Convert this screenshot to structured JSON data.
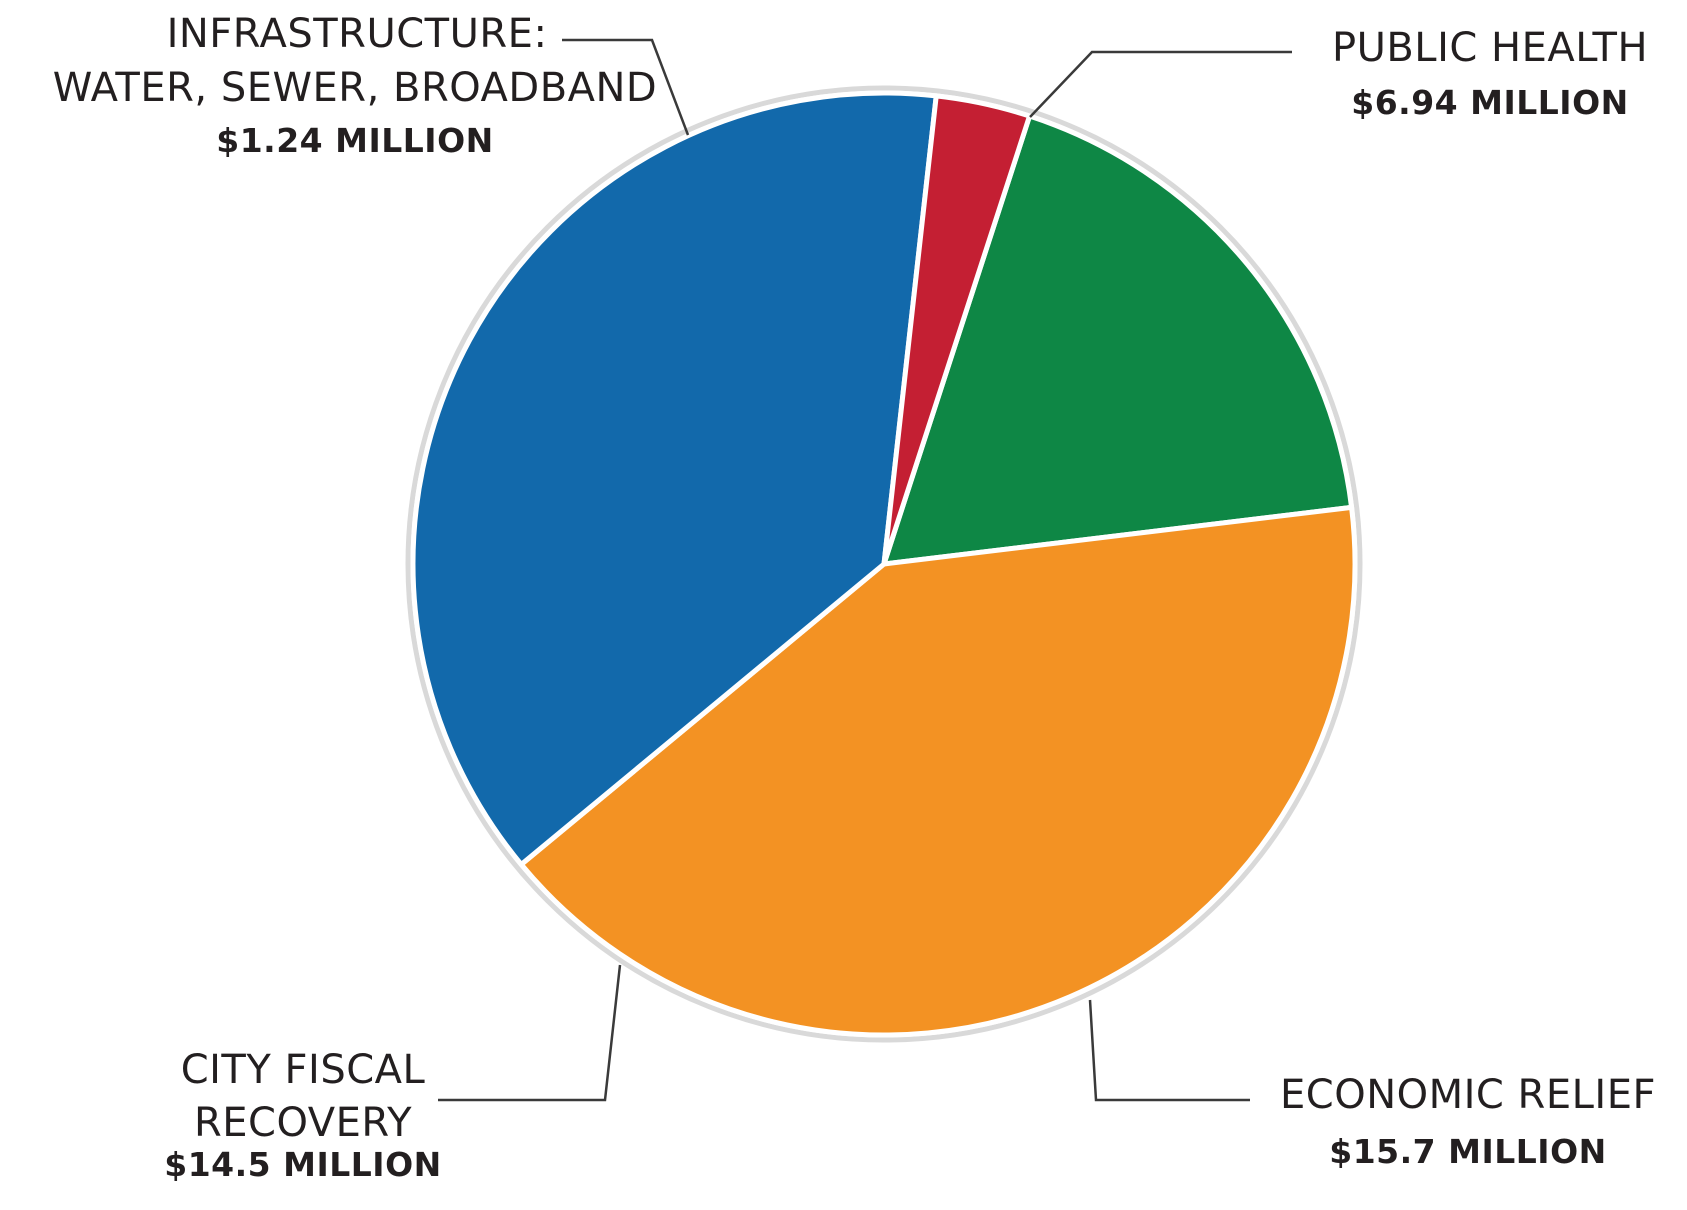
{
  "chart_data": {
    "type": "pie",
    "slices": [
      {
        "label_lines": [
          "PUBLIC HEALTH"
        ],
        "value_label": "$6.94 MILLION",
        "value": 6.94,
        "color": "#0e8745"
      },
      {
        "label_lines": [
          "ECONOMIC RELIEF"
        ],
        "value_label": "$15.7 MILLION",
        "value": 15.7,
        "color": "#f39223"
      },
      {
        "label_lines": [
          "CITY FISCAL",
          "RECOVERY"
        ],
        "value_label": "$14.5 MILLION",
        "value": 14.5,
        "color": "#1269ab"
      },
      {
        "label_lines": [
          "INFRASTRUCTURE:",
          "WATER, SEWER, BROADBAND"
        ],
        "value_label": "$1.24 MILLION",
        "value": 1.24,
        "color": "#c41f33"
      }
    ],
    "start_angle_deg": 18,
    "direction": "clockwise",
    "slice_border_color": "#ffffff",
    "outer_ring_color": "#d9d9d9"
  }
}
